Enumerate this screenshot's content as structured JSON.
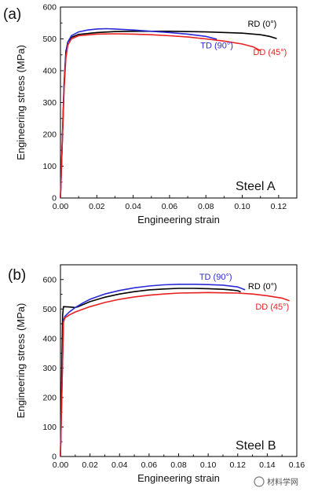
{
  "chart_data": [
    {
      "type": "line",
      "panel_label": "(a)",
      "annotation": "Steel A",
      "xlabel": "Engineering strain",
      "ylabel": "Engineering stress (MPa)",
      "xlim": [
        0,
        0.13
      ],
      "ylim": [
        0,
        600
      ],
      "xticks": [
        "0.00",
        "0.02",
        "0.04",
        "0.06",
        "0.08",
        "0.10",
        "0.12"
      ],
      "yticks": [
        "0",
        "100",
        "200",
        "300",
        "400",
        "500",
        "600"
      ],
      "grid": false,
      "series": [
        {
          "name": "RD (0°)",
          "color": "#000000",
          "x": [
            0,
            0.002,
            0.003,
            0.004,
            0.006,
            0.01,
            0.02,
            0.03,
            0.04,
            0.06,
            0.08,
            0.1,
            0.11,
            0.115,
            0.119
          ],
          "y": [
            0,
            360,
            460,
            490,
            505,
            514,
            520,
            523,
            524,
            524,
            522,
            518,
            513,
            508,
            501
          ]
        },
        {
          "name": "TD (90°)",
          "color": "#2a2ad8",
          "x": [
            0,
            0.002,
            0.003,
            0.004,
            0.006,
            0.01,
            0.015,
            0.02,
            0.025,
            0.03,
            0.04,
            0.05,
            0.06,
            0.07,
            0.08,
            0.086
          ],
          "y": [
            0,
            350,
            450,
            490,
            510,
            522,
            528,
            531,
            532,
            531,
            528,
            524,
            520,
            515,
            508,
            499
          ]
        },
        {
          "name": "DD (45°)",
          "color": "#e82020",
          "x": [
            0,
            0.002,
            0.003,
            0.004,
            0.006,
            0.01,
            0.02,
            0.03,
            0.04,
            0.05,
            0.06,
            0.07,
            0.08,
            0.09,
            0.1,
            0.106,
            0.11
          ],
          "y": [
            0,
            340,
            440,
            480,
            500,
            510,
            515,
            516,
            515,
            513,
            510,
            506,
            500,
            493,
            484,
            475,
            463
          ]
        }
      ],
      "labels": [
        {
          "text": "RD (0°)",
          "color": "#000000",
          "x": 0.103,
          "y": 538
        },
        {
          "text": "TD (90°)",
          "color": "#2a2ad8",
          "x": 0.077,
          "y": 470
        },
        {
          "text": "DD (45°)",
          "color": "#e82020",
          "x": 0.106,
          "y": 450
        }
      ]
    },
    {
      "type": "line",
      "panel_label": "(b)",
      "annotation": "Steel B",
      "xlabel": "Engineering strain",
      "ylabel": "Engineering stress (MPa)",
      "xlim": [
        0,
        0.16
      ],
      "ylim": [
        0,
        650
      ],
      "xticks": [
        "0.00",
        "0.02",
        "0.04",
        "0.06",
        "0.08",
        "0.10",
        "0.12",
        "0.14",
        "0.16"
      ],
      "yticks": [
        "0",
        "100",
        "200",
        "300",
        "400",
        "500",
        "600"
      ],
      "grid": false,
      "series": [
        {
          "name": "RD (0°)",
          "color": "#000000",
          "x": [
            0,
            0.0015,
            0.002,
            0.006,
            0.01,
            0.012,
            0.02,
            0.03,
            0.04,
            0.05,
            0.06,
            0.07,
            0.08,
            0.09,
            0.1,
            0.11,
            0.115,
            0.12,
            0.122
          ],
          "y": [
            0,
            480,
            508,
            507,
            505,
            508,
            525,
            540,
            551,
            559,
            565,
            568,
            570,
            570,
            569,
            567,
            565,
            562,
            558
          ]
        },
        {
          "name": "TD (90°)",
          "color": "#2a2ad8",
          "x": [
            0,
            0.002,
            0.003,
            0.006,
            0.01,
            0.015,
            0.02,
            0.03,
            0.04,
            0.05,
            0.06,
            0.07,
            0.08,
            0.09,
            0.1,
            0.11,
            0.12,
            0.125
          ],
          "y": [
            0,
            460,
            475,
            490,
            505,
            520,
            533,
            551,
            563,
            572,
            578,
            582,
            584,
            584,
            583,
            581,
            575,
            565
          ]
        },
        {
          "name": "DD (45°)",
          "color": "#e82020",
          "x": [
            0,
            0.002,
            0.003,
            0.006,
            0.01,
            0.02,
            0.03,
            0.04,
            0.05,
            0.06,
            0.07,
            0.08,
            0.09,
            0.1,
            0.11,
            0.12,
            0.13,
            0.14,
            0.15,
            0.155
          ],
          "y": [
            0,
            455,
            470,
            480,
            490,
            508,
            522,
            533,
            541,
            547,
            551,
            554,
            555,
            556,
            555,
            554,
            551,
            545,
            537,
            528
          ]
        }
      ],
      "labels": [
        {
          "text": "TD (90°)",
          "color": "#2a2ad8",
          "x": 0.094,
          "y": 600
        },
        {
          "text": "RD (0°)",
          "color": "#000000",
          "x": 0.127,
          "y": 567
        },
        {
          "text": "DD (45°)",
          "color": "#e82020",
          "x": 0.132,
          "y": 498
        }
      ]
    }
  ],
  "watermark": "材料学网"
}
